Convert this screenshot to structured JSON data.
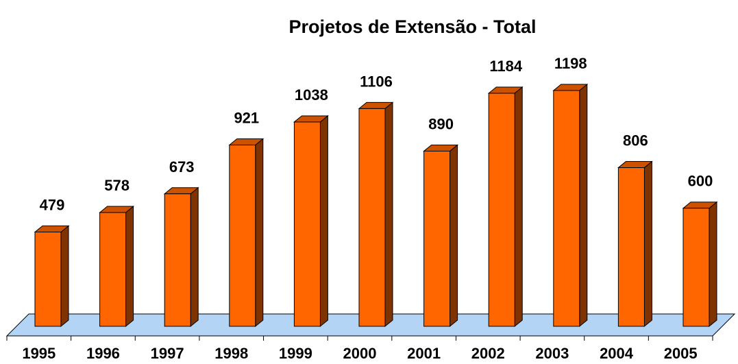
{
  "chart_data": {
    "type": "bar3d",
    "title": "Projetos de Extensão - Total",
    "categories": [
      "1995",
      "1996",
      "1997",
      "1998",
      "1999",
      "2000",
      "2001",
      "2002",
      "2003",
      "2004",
      "2005"
    ],
    "values": [
      479,
      578,
      673,
      921,
      1038,
      1106,
      890,
      1184,
      1198,
      806,
      600
    ],
    "color": "#ff6600",
    "side_color": "#7f3300",
    "top_color": "#cc5200",
    "floor_color": "#b3d4f5"
  }
}
